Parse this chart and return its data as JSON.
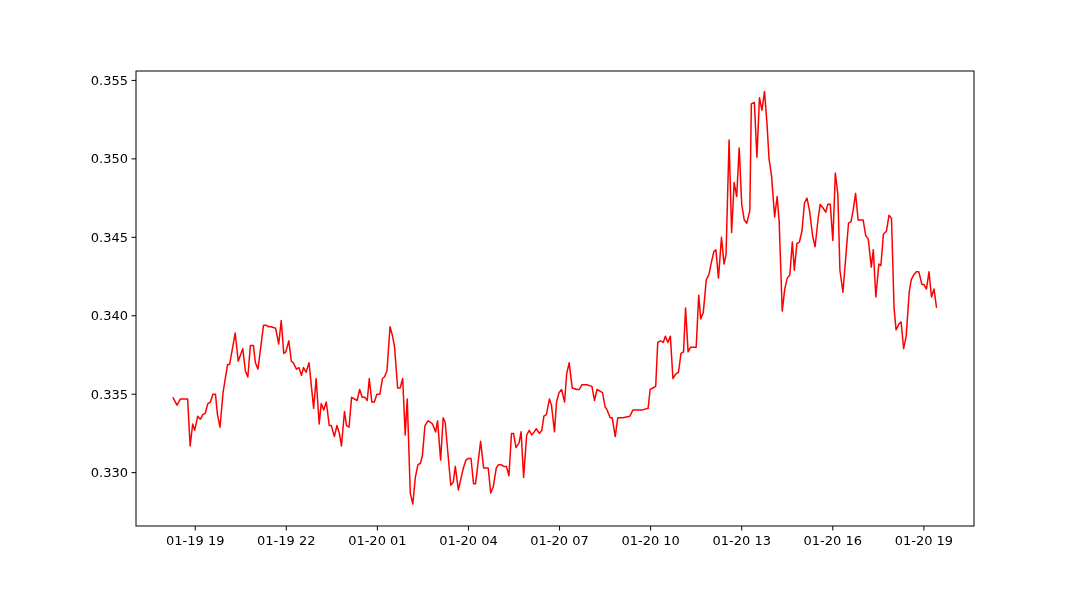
{
  "chart_data": {
    "type": "line",
    "x": [
      "--01-19T18:16",
      "--01-19T18:24",
      "--01-19T18:31",
      "--01-19T18:45",
      "--01-19T18:50",
      "--01-19T18:55",
      "--01-19T18:59",
      "--01-19T19:05",
      "--01-19T19:10",
      "--01-19T19:15",
      "--01-19T19:20",
      "--01-19T19:25",
      "--01-19T19:30",
      "--01-19T19:35",
      "--01-19T19:40",
      "--01-19T19:44",
      "--01-19T19:49",
      "--01-19T19:55",
      "--01-19T20:04",
      "--01-19T20:08",
      "--01-19T20:19",
      "--01-19T20:25",
      "--01-19T20:34",
      "--01-19T20:39",
      "--01-19T20:44",
      "--01-19T20:49",
      "--01-19T20:55",
      "--01-19T20:59",
      "--01-19T21:04",
      "--01-19T21:15",
      "--01-19T21:20",
      "--01-19T21:25",
      "--01-19T21:30",
      "--01-19T21:39",
      "--01-19T21:45",
      "--01-19T21:50",
      "--01-19T21:55",
      "--01-19T21:59",
      "--01-19T22:05",
      "--01-19T22:10",
      "--01-19T22:14",
      "--01-19T22:20",
      "--01-19T22:25",
      "--01-19T22:30",
      "--01-19T22:34",
      "--01-19T22:39",
      "--01-19T22:45",
      "--01-19T22:54",
      "--01-19T22:59",
      "--01-19T23:05",
      "--01-19T23:09",
      "--01-19T23:14",
      "--01-19T23:19",
      "--01-19T23:25",
      "--01-19T23:29",
      "--01-19T23:35",
      "--01-19T23:40",
      "--01-19T23:45",
      "--01-19T23:49",
      "--01-19T23:55",
      "--01-19T23:59",
      "--01-20T00:04",
      "--01-20T00:09",
      "--01-20T00:20",
      "--01-20T00:25",
      "--01-20T00:30",
      "--01-20T00:35",
      "--01-20T00:40",
      "--01-20T00:44",
      "--01-20T00:49",
      "--01-20T00:54",
      "--01-20T00:59",
      "--01-20T01:05",
      "--01-20T01:10",
      "--01-20T01:14",
      "--01-20T01:19",
      "--01-20T01:25",
      "--01-20T01:30",
      "--01-20T01:34",
      "--01-20T01:40",
      "--01-20T01:45",
      "--01-20T01:50",
      "--01-20T01:55",
      "--01-20T01:59",
      "--01-20T02:05",
      "--01-20T02:10",
      "--01-20T02:15",
      "--01-20T02:20",
      "--01-20T02:25",
      "--01-20T02:29",
      "--01-20T02:34",
      "--01-20T02:40",
      "--01-20T02:45",
      "--01-20T02:49",
      "--01-20T02:55",
      "--01-20T02:59",
      "--01-20T03:05",
      "--01-20T03:10",
      "--01-20T03:14",
      "--01-20T03:25",
      "--01-20T03:30",
      "--01-20T03:34",
      "--01-20T03:40",
      "--01-20T03:50",
      "--01-20T03:55",
      "--01-20T03:59",
      "--01-20T04:05",
      "--01-20T04:10",
      "--01-20T04:14",
      "--01-20T04:24",
      "--01-20T04:30",
      "--01-20T04:39",
      "--01-20T04:44",
      "--01-20T04:49",
      "--01-20T04:55",
      "--01-20T04:59",
      "--01-20T05:05",
      "--01-20T05:10",
      "--01-20T05:15",
      "--01-20T05:20",
      "--01-20T05:25",
      "--01-20T05:29",
      "--01-20T05:34",
      "--01-20T05:40",
      "--01-20T05:44",
      "--01-20T05:49",
      "--01-20T05:55",
      "--01-20T06:00",
      "--01-20T06:05",
      "--01-20T06:10",
      "--01-20T06:14",
      "--01-20T06:20",
      "--01-20T06:25",
      "--01-20T06:29",
      "--01-20T06:34",
      "--01-20T06:40",
      "--01-20T06:44",
      "--01-20T06:50",
      "--01-20T06:54",
      "--01-20T06:59",
      "--01-20T07:04",
      "--01-20T07:10",
      "--01-20T07:14",
      "--01-20T07:19",
      "--01-20T07:25",
      "--01-20T07:34",
      "--01-20T07:39",
      "--01-20T07:44",
      "--01-20T07:54",
      "--01-20T08:04",
      "--01-20T08:09",
      "--01-20T08:14",
      "--01-20T08:25",
      "--01-20T08:30",
      "--01-20T08:34",
      "--01-20T08:40",
      "--01-20T08:44",
      "--01-20T08:50",
      "--01-20T08:55",
      "--01-20T09:05",
      "--01-20T09:19",
      "--01-20T09:25",
      "--01-20T09:44",
      "--01-20T09:55",
      "--01-20T09:59",
      "--01-20T10:10",
      "--01-20T10:14",
      "--01-20T10:20",
      "--01-20T10:25",
      "--01-20T10:29",
      "--01-20T10:34",
      "--01-20T10:39",
      "--01-20T10:44",
      "--01-20T10:50",
      "--01-20T10:55",
      "--01-20T11:00",
      "--01-20T11:05",
      "--01-20T11:09",
      "--01-20T11:14",
      "--01-20T11:19",
      "--01-20T11:30",
      "--01-20T11:35",
      "--01-20T11:39",
      "--01-20T11:44",
      "--01-20T11:50",
      "--01-20T11:55",
      "--01-20T12:00",
      "--01-20T12:05",
      "--01-20T12:09",
      "--01-20T12:14",
      "--01-20T12:20",
      "--01-20T12:25",
      "--01-20T12:29",
      "--01-20T12:35",
      "--01-20T12:40",
      "--01-20T12:45",
      "--01-20T12:50",
      "--01-20T12:55",
      "--01-20T13:00",
      "--01-20T13:05",
      "--01-20T13:10",
      "--01-20T13:16",
      "--01-20T13:19",
      "--01-20T13:25",
      "--01-20T13:30",
      "--01-20T13:35",
      "--01-20T13:40",
      "--01-20T13:45",
      "--01-20T13:50",
      "--01-20T13:54",
      "--01-20T13:59",
      "--01-20T14:05",
      "--01-20T14:10",
      "--01-20T14:14",
      "--01-20T14:20",
      "--01-20T14:25",
      "--01-20T14:30",
      "--01-20T14:35",
      "--01-20T14:40",
      "--01-20T14:44",
      "--01-20T14:49",
      "--01-20T14:54",
      "--01-20T14:59",
      "--01-20T15:04",
      "--01-20T15:09",
      "--01-20T15:14",
      "--01-20T15:20",
      "--01-20T15:25",
      "--01-20T15:31",
      "--01-20T15:35",
      "--01-20T15:40",
      "--01-20T15:46",
      "--01-20T15:50",
      "--01-20T15:55",
      "--01-20T16:00",
      "--01-20T16:05",
      "--01-20T16:10",
      "--01-20T16:14",
      "--01-20T16:20",
      "--01-20T16:31",
      "--01-20T16:36",
      "--01-20T16:40",
      "--01-20T16:45",
      "--01-20T16:50",
      "--01-20T17:00",
      "--01-20T17:05",
      "--01-20T17:10",
      "--01-20T17:16",
      "--01-20T17:20",
      "--01-20T17:25",
      "--01-20T17:31",
      "--01-20T17:35",
      "--01-20T17:40",
      "--01-20T17:46",
      "--01-20T17:51",
      "--01-20T17:56",
      "--01-20T18:01",
      "--01-20T18:05",
      "--01-20T18:11",
      "--01-20T18:15",
      "--01-20T18:20",
      "--01-20T18:25",
      "--01-20T18:31",
      "--01-20T18:35",
      "--01-20T18:40",
      "--01-20T18:45",
      "--01-20T18:50",
      "--01-20T18:56",
      "--01-20T19:00",
      "--01-20T19:05",
      "--01-20T19:10",
      "--01-20T19:15",
      "--01-20T19:20",
      "--01-20T19:25"
    ],
    "series": [
      {
        "color": "#ff0000",
        "values": [
          0.3348,
          0.3343,
          0.3347,
          0.3347,
          0.3317,
          0.3331,
          0.3327,
          0.3336,
          0.3334,
          0.3337,
          0.3338,
          0.3344,
          0.3345,
          0.335,
          0.335,
          0.3337,
          0.3329,
          0.3351,
          0.3369,
          0.3369,
          0.3389,
          0.3371,
          0.3379,
          0.3365,
          0.3361,
          0.3381,
          0.3381,
          0.337,
          0.3366,
          0.3394,
          0.3394,
          0.3393,
          0.3393,
          0.3392,
          0.3382,
          0.3397,
          0.3376,
          0.3377,
          0.3384,
          0.3371,
          0.337,
          0.3366,
          0.3367,
          0.3362,
          0.3367,
          0.3364,
          0.337,
          0.3341,
          0.336,
          0.3331,
          0.3344,
          0.334,
          0.3345,
          0.333,
          0.333,
          0.3323,
          0.333,
          0.3325,
          0.3317,
          0.3339,
          0.333,
          0.3329,
          0.3348,
          0.3346,
          0.3353,
          0.3348,
          0.3348,
          0.3346,
          0.336,
          0.3345,
          0.3345,
          0.335,
          0.335,
          0.336,
          0.3361,
          0.3365,
          0.3393,
          0.3387,
          0.338,
          0.3354,
          0.3354,
          0.336,
          0.3324,
          0.3347,
          0.3287,
          0.328,
          0.3297,
          0.3305,
          0.3306,
          0.3311,
          0.333,
          0.3333,
          0.3332,
          0.3331,
          0.3326,
          0.3333,
          0.3308,
          0.3335,
          0.3332,
          0.3292,
          0.3294,
          0.3304,
          0.3289,
          0.3303,
          0.3308,
          0.3309,
          0.3309,
          0.3293,
          0.3293,
          0.332,
          0.3303,
          0.3303,
          0.3287,
          0.3291,
          0.3303,
          0.3305,
          0.3305,
          0.3304,
          0.3304,
          0.3298,
          0.3325,
          0.3325,
          0.3316,
          0.3319,
          0.3326,
          0.3297,
          0.3324,
          0.3327,
          0.3324,
          0.3326,
          0.3328,
          0.3325,
          0.3327,
          0.3336,
          0.3337,
          0.3347,
          0.3343,
          0.3326,
          0.3345,
          0.3351,
          0.3353,
          0.3345,
          0.3363,
          0.337,
          0.3354,
          0.3353,
          0.3353,
          0.3356,
          0.3356,
          0.3355,
          0.3346,
          0.3353,
          0.3351,
          0.3342,
          0.334,
          0.3335,
          0.3335,
          0.3323,
          0.3335,
          0.3335,
          0.3336,
          0.334,
          0.334,
          0.3341,
          0.3353,
          0.3355,
          0.3383,
          0.3384,
          0.3383,
          0.3387,
          0.3383,
          0.3387,
          0.336,
          0.3363,
          0.3364,
          0.3376,
          0.3377,
          0.3405,
          0.3377,
          0.338,
          0.338,
          0.3413,
          0.3398,
          0.3402,
          0.3423,
          0.3426,
          0.3434,
          0.3441,
          0.3442,
          0.3424,
          0.345,
          0.3433,
          0.3439,
          0.3512,
          0.3453,
          0.3485,
          0.3476,
          0.3507,
          0.3471,
          0.3461,
          0.3459,
          0.3467,
          0.3535,
          0.3536,
          0.3501,
          0.3539,
          0.3531,
          0.3543,
          0.3522,
          0.35,
          0.3489,
          0.3463,
          0.3476,
          0.346,
          0.3403,
          0.3417,
          0.3424,
          0.3426,
          0.3447,
          0.3429,
          0.3446,
          0.3447,
          0.3454,
          0.3472,
          0.3475,
          0.3467,
          0.3451,
          0.3444,
          0.3462,
          0.3471,
          0.3469,
          0.3466,
          0.3471,
          0.3471,
          0.3448,
          0.3491,
          0.3477,
          0.3429,
          0.3415,
          0.3459,
          0.346,
          0.3467,
          0.3478,
          0.3461,
          0.3461,
          0.3451,
          0.3449,
          0.3431,
          0.3442,
          0.3412,
          0.3433,
          0.3432,
          0.3452,
          0.3454,
          0.3464,
          0.3462,
          0.3405,
          0.3391,
          0.3395,
          0.3396,
          0.3379,
          0.3387,
          0.3415,
          0.3423,
          0.3426,
          0.3428,
          0.3428,
          0.342,
          0.342,
          0.3417,
          0.3428,
          0.3412,
          0.3417,
          0.3405
        ]
      }
    ],
    "xlim": [
      "--01-19T17:03",
      "--01-20T20:39"
    ],
    "xticks": [
      {
        "value": "--01-19T19:00",
        "label": "01-19 19"
      },
      {
        "value": "--01-19T22:00",
        "label": "01-19 22"
      },
      {
        "value": "--01-20T01:00",
        "label": "01-20 01"
      },
      {
        "value": "--01-20T04:00",
        "label": "01-20 04"
      },
      {
        "value": "--01-20T07:00",
        "label": "01-20 07"
      },
      {
        "value": "--01-20T10:00",
        "label": "01-20 10"
      },
      {
        "value": "--01-20T13:00",
        "label": "01-20 13"
      },
      {
        "value": "--01-20T16:00",
        "label": "01-20 16"
      },
      {
        "value": "--01-20T19:00",
        "label": "01-20 19"
      }
    ],
    "ylim": [
      0.3266,
      0.3556
    ],
    "yticks": [
      {
        "value": 0.33,
        "label": "0.330"
      },
      {
        "value": 0.335,
        "label": "0.335"
      },
      {
        "value": 0.34,
        "label": "0.340"
      },
      {
        "value": 0.345,
        "label": "0.345"
      },
      {
        "value": 0.35,
        "label": "0.350"
      },
      {
        "value": 0.355,
        "label": "0.355"
      }
    ]
  }
}
